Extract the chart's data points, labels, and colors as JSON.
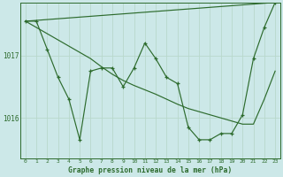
{
  "title": "Graphe pression niveau de la mer (hPa)",
  "background_color": "#cce8e8",
  "grid_color": "#b8d8cc",
  "line_color": "#2d6b2d",
  "xlim": [
    -0.5,
    23.5
  ],
  "ylim": [
    1015.35,
    1017.85
  ],
  "yticks": [
    1016,
    1017
  ],
  "xticks": [
    0,
    1,
    2,
    3,
    4,
    5,
    6,
    7,
    8,
    9,
    10,
    11,
    12,
    13,
    14,
    15,
    16,
    17,
    18,
    19,
    20,
    21,
    22,
    23
  ],
  "hours": [
    0,
    1,
    2,
    3,
    4,
    5,
    6,
    7,
    8,
    9,
    10,
    11,
    12,
    13,
    14,
    15,
    16,
    17,
    18,
    19,
    20,
    21,
    22,
    23
  ],
  "pressure_main": [
    1017.55,
    1017.55,
    1017.1,
    1016.65,
    1016.3,
    1015.65,
    1016.75,
    1016.8,
    1016.8,
    1016.5,
    1016.8,
    1017.2,
    1016.95,
    1016.65,
    1016.55,
    1015.85,
    1015.65,
    1015.65,
    1015.75,
    1015.75,
    1016.05,
    1016.95,
    1017.45,
    1017.85
  ],
  "trend_line": [
    [
      0,
      23
    ],
    [
      1017.55,
      1017.85
    ]
  ],
  "smooth_line": [
    1017.55,
    1017.45,
    1017.35,
    1017.25,
    1017.15,
    1017.05,
    1016.95,
    1016.82,
    1016.7,
    1016.6,
    1016.52,
    1016.45,
    1016.38,
    1016.3,
    1016.22,
    1016.15,
    1016.1,
    1016.05,
    1016.0,
    1015.95,
    1015.9,
    1015.9,
    1016.3,
    1016.75
  ]
}
